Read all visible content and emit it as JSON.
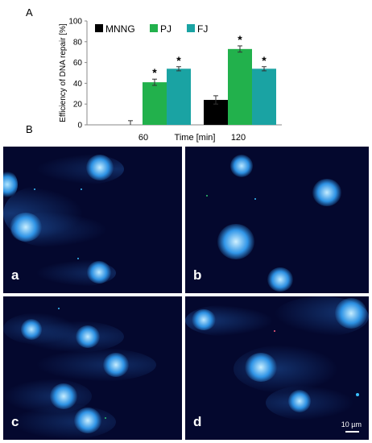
{
  "panels": {
    "A": "A",
    "B": "B"
  },
  "chart_data": {
    "type": "bar",
    "ylabel": "Efficiency of DNA repair [%]",
    "xlabel": "Time [min]",
    "categories": [
      "60",
      "120"
    ],
    "ylim": [
      0,
      100
    ],
    "yticks": [
      0,
      20,
      40,
      60,
      80,
      100
    ],
    "legend_position": "top",
    "grid": false,
    "series": [
      {
        "name": "MNNG",
        "color": "#000000",
        "values": [
          0,
          24
        ],
        "errors": [
          4,
          4
        ]
      },
      {
        "name": "PJ",
        "color": "#22b14c",
        "values": [
          41,
          73
        ],
        "errors": [
          3,
          3
        ]
      },
      {
        "name": "FJ",
        "color": "#1aa3a3",
        "values": [
          54,
          54
        ],
        "errors": [
          2,
          2
        ]
      }
    ],
    "significance": [
      {
        "series": "PJ",
        "category": "60",
        "mark": "*"
      },
      {
        "series": "FJ",
        "category": "60",
        "mark": "*"
      },
      {
        "series": "PJ",
        "category": "120",
        "mark": "*"
      },
      {
        "series": "FJ",
        "category": "120",
        "mark": "*"
      }
    ]
  },
  "micrographs": [
    {
      "label": "a"
    },
    {
      "label": "b"
    },
    {
      "label": "c"
    },
    {
      "label": "d",
      "scale_bar": "10 µm"
    }
  ]
}
